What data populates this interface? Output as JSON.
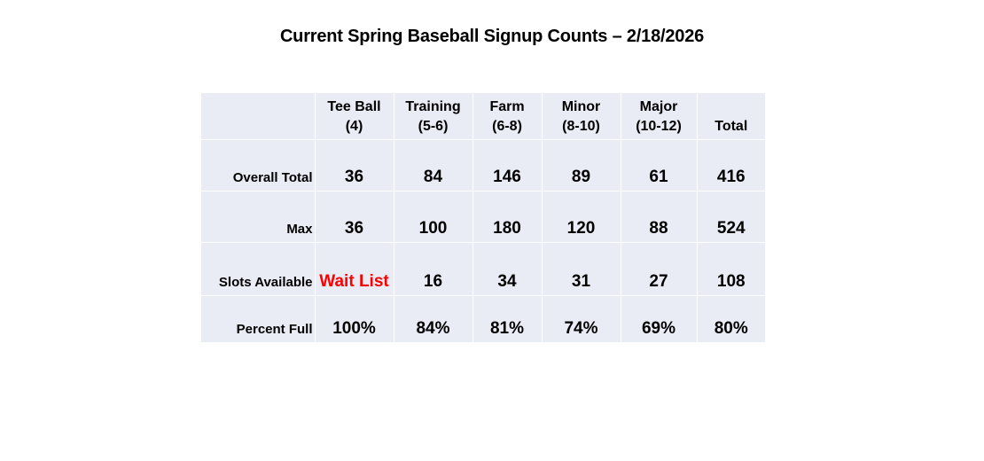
{
  "title": "Current Spring Baseball Signup Counts – 2/18/2026",
  "table": {
    "columns": [
      {
        "line1": "Tee Ball",
        "line2": "(4)"
      },
      {
        "line1": "Training",
        "line2": "(5-6)"
      },
      {
        "line1": "Farm",
        "line2": "(6-8)"
      },
      {
        "line1": "Minor",
        "line2": "(8-10)"
      },
      {
        "line1": "Major",
        "line2": "(10-12)"
      },
      {
        "line1": "",
        "line2": "Total"
      }
    ],
    "rows": [
      {
        "label": "Overall Total",
        "values": [
          "36",
          "84",
          "146",
          "89",
          "61",
          "416"
        ]
      },
      {
        "label": "Max",
        "values": [
          "36",
          "100",
          "180",
          "120",
          "88",
          "524"
        ]
      },
      {
        "label": "Slots Available",
        "values": [
          "Wait List",
          "16",
          "34",
          "31",
          "27",
          "108"
        ]
      },
      {
        "label": "Percent Full",
        "values": [
          "100%",
          "84%",
          "81%",
          "74%",
          "69%",
          "80%"
        ]
      }
    ],
    "highlight_color": "#ff0000",
    "background_color": "#e9ebf5"
  }
}
